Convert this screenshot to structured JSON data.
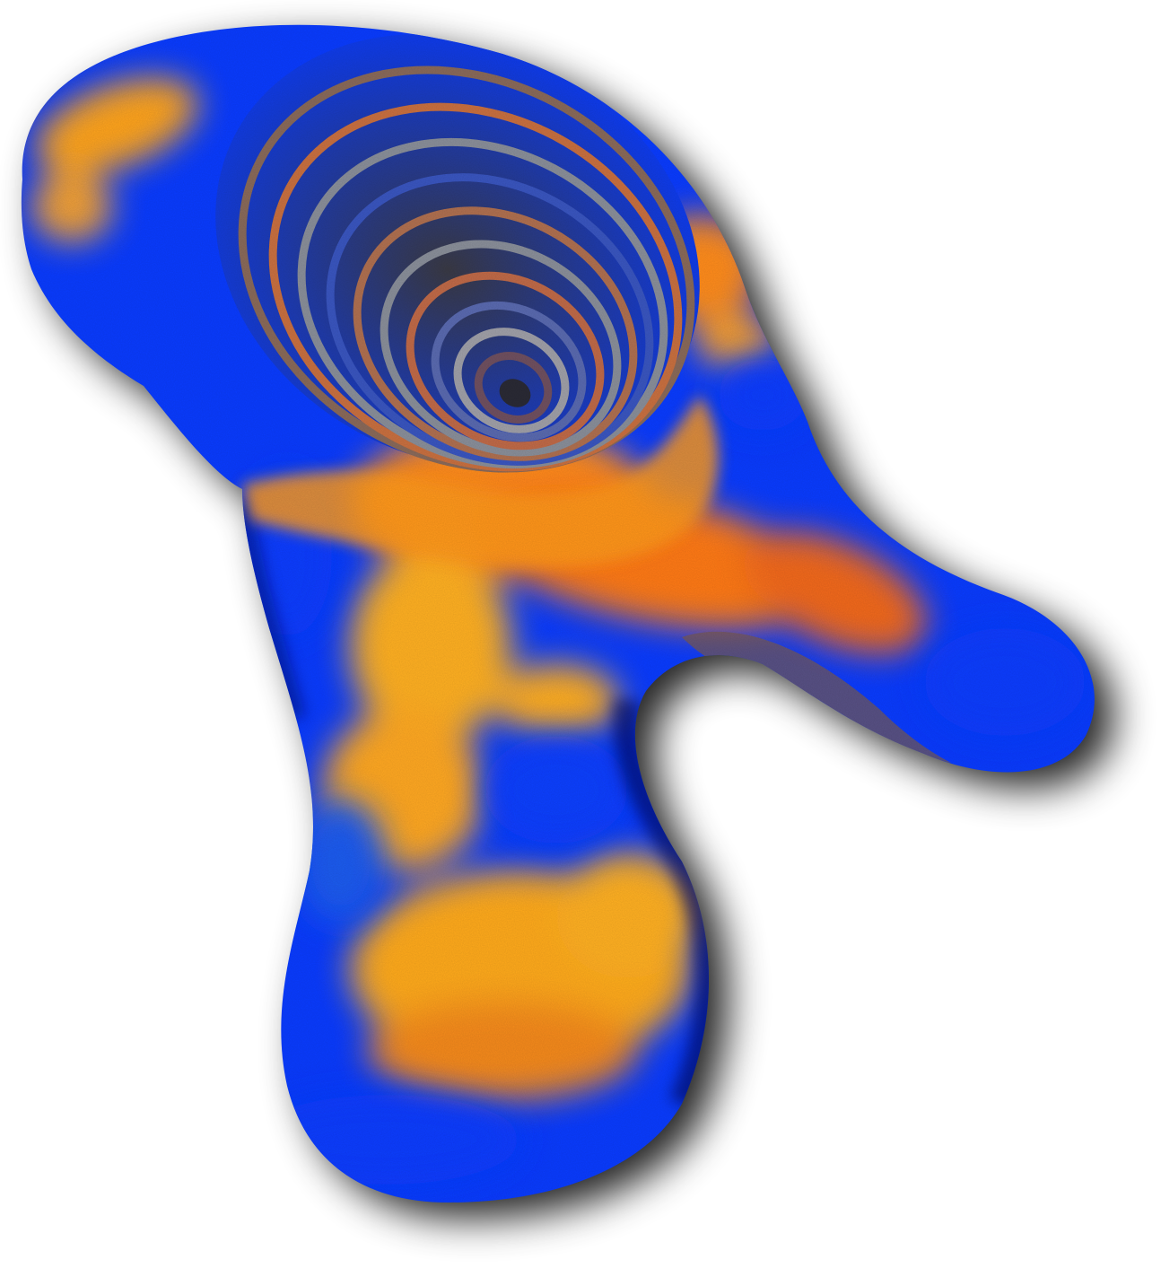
{
  "artwork": {
    "subject": "abstract-3d-blob-sculpture",
    "colors": {
      "background": "#ffffff",
      "primary_blue": "#0a3cff",
      "deep_blue": "#0016c8",
      "orange": "#ff8a1e",
      "amber": "#ffb020",
      "red_orange": "#f04a14",
      "shadow": "#000000",
      "groove_gray": "#8a8f9a"
    }
  }
}
